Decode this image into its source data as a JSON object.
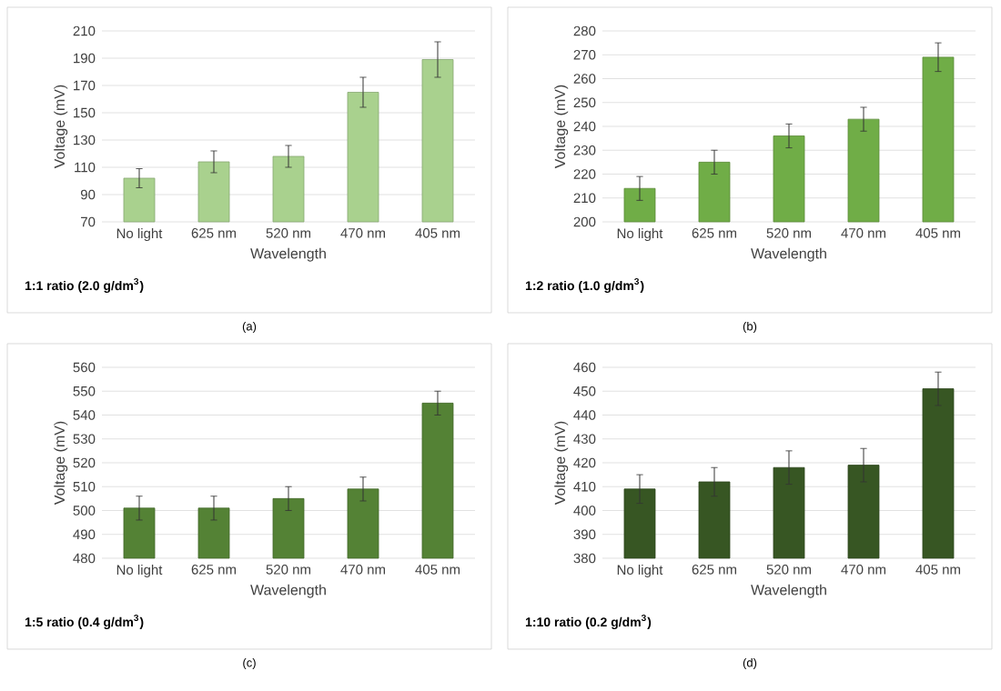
{
  "chart_data": [
    {
      "type": "bar",
      "title": "1:1 ratio (2.0 g/dm$^{3}$)",
      "xlabel": "Wavelength",
      "ylabel": "Voltage (mV)",
      "categories": [
        "No light",
        "625 nm",
        "520 nm",
        "470 nm",
        "405 nm"
      ],
      "values": [
        102,
        114,
        118,
        165,
        189
      ],
      "errors": [
        7,
        8,
        8,
        11,
        13
      ],
      "color": "#a9d18e",
      "ylim": [
        70,
        210
      ],
      "yticks": [
        70,
        90,
        110,
        130,
        150,
        170,
        190,
        210
      ],
      "grid": "y",
      "annotations": [
        "(a)"
      ]
    },
    {
      "type": "bar",
      "title": "1:2 ratio (1.0 g/dm$^{3}$)",
      "xlabel": "Wavelength",
      "ylabel": "Voltage (mV)",
      "categories": [
        "No light",
        "625 nm",
        "520 nm",
        "470 nm",
        "405 nm"
      ],
      "values": [
        214,
        225,
        236,
        243,
        269
      ],
      "errors": [
        5,
        5,
        5,
        5,
        6
      ],
      "color": "#70ad47",
      "ylim": [
        200,
        280
      ],
      "yticks": [
        200,
        210,
        220,
        230,
        240,
        250,
        260,
        270,
        280
      ],
      "grid": "y",
      "annotations": [
        "(b)"
      ]
    },
    {
      "type": "bar",
      "title": "1:5 ratio (0.4 g/dm$^{3}$)",
      "xlabel": "Wavelength",
      "ylabel": "Voltage (mV)",
      "categories": [
        "No light",
        "625 nm",
        "520 nm",
        "470 nm",
        "405 nm"
      ],
      "values": [
        501,
        501,
        505,
        509,
        545
      ],
      "errors": [
        5,
        5,
        5,
        5,
        5
      ],
      "color": "#548235",
      "ylim": [
        480,
        560
      ],
      "yticks": [
        480,
        490,
        500,
        510,
        520,
        530,
        540,
        550,
        560
      ],
      "grid": "y",
      "annotations": [
        "(c)"
      ]
    },
    {
      "type": "bar",
      "title": "1:10 ratio (0.2 g/dm$^{3}$)",
      "xlabel": "Wavelength",
      "ylabel": "Voltage (mV)",
      "categories": [
        "No light",
        "625 nm",
        "520 nm",
        "470 nm",
        "405 nm"
      ],
      "values": [
        409,
        412,
        418,
        419,
        451
      ],
      "errors": [
        6,
        6,
        7,
        7,
        7
      ],
      "color": "#375623",
      "ylim": [
        380,
        460
      ],
      "yticks": [
        380,
        390,
        400,
        410,
        420,
        430,
        440,
        450,
        460
      ],
      "grid": "y",
      "annotations": [
        "(d)"
      ]
    }
  ]
}
